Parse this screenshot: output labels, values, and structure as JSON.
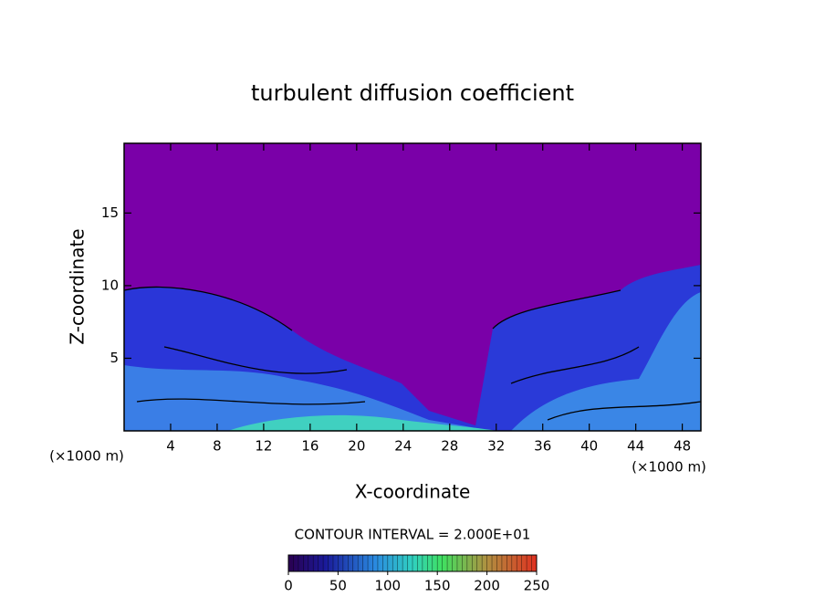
{
  "chart_data": {
    "type": "contour",
    "title": "turbulent diffusion coefficient",
    "x_label": "X-coordinate",
    "y_label": "Z-coordinate",
    "x_unit": "(×1000 m)",
    "y_unit": "(×1000 m)",
    "xlim": [
      0,
      49.6
    ],
    "xticks": [
      4,
      8,
      12,
      16,
      20,
      24,
      28,
      32,
      36,
      40,
      44,
      48
    ],
    "ylim": [
      0,
      19.8
    ],
    "yticks": [
      5,
      10,
      15
    ],
    "contour_interval": "CONTOUR INTERVAL = 2.000E+01",
    "colorbar": {
      "lim": [
        0,
        250
      ],
      "ticks": [
        0,
        50,
        100,
        150,
        200,
        250
      ]
    }
  }
}
